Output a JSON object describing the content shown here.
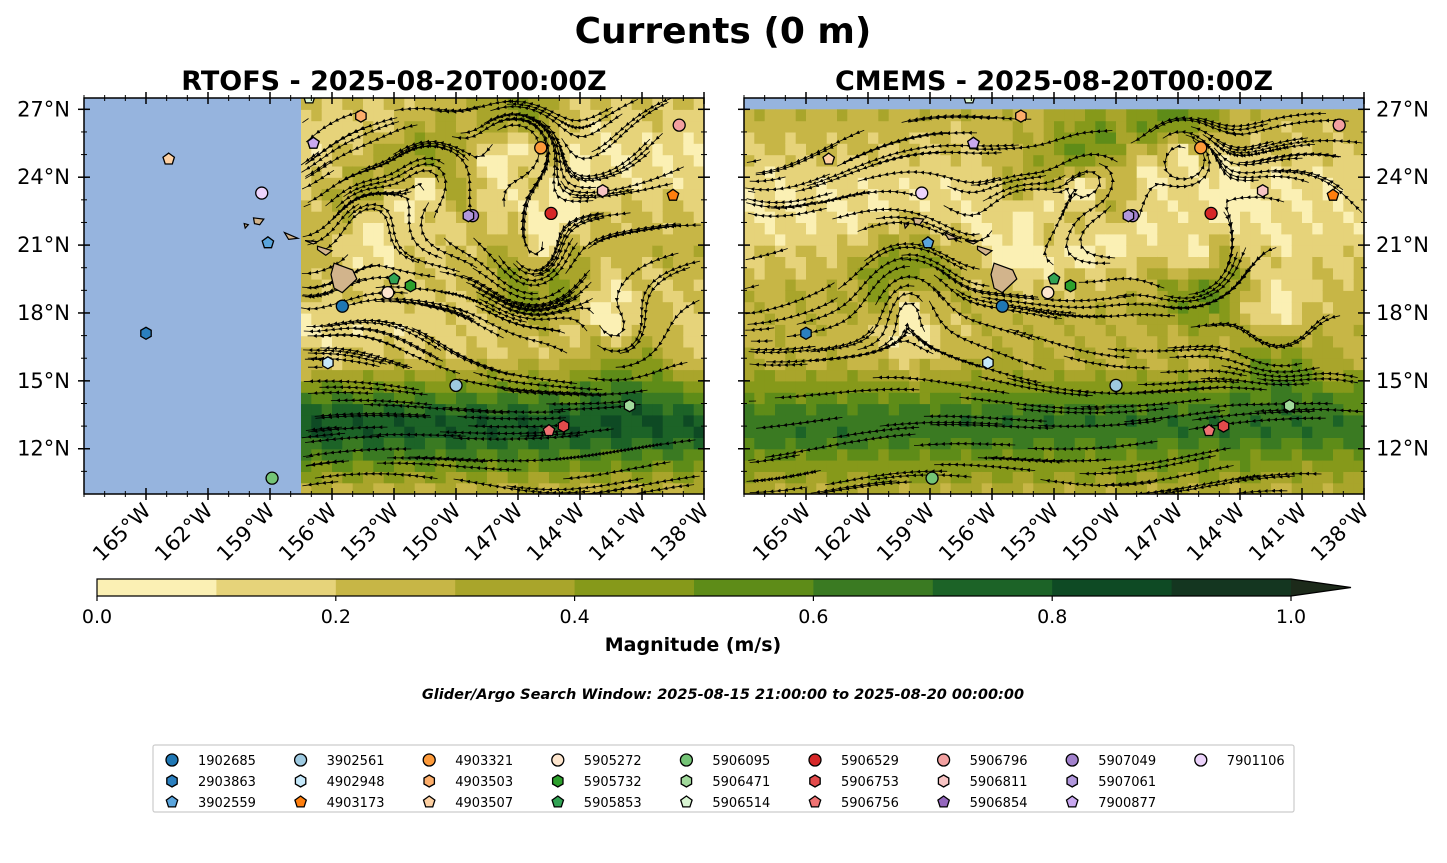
{
  "figure": {
    "suptitle": "Currents (0 m)",
    "search_window": "Glider/Argo Search Window: 2025-08-15 21:00:00 to 2025-08-20 00:00:00"
  },
  "chart_data": [
    {
      "type": "streamplot-map",
      "title": "RTOFS - 2025-08-20T00:00Z",
      "lon_range": [
        -168,
        -138
      ],
      "lat_range": [
        10,
        27.5
      ],
      "lon_ticks": [
        "165°W",
        "162°W",
        "159°W",
        "156°W",
        "153°W",
        "150°W",
        "147°W",
        "144°W",
        "141°W",
        "138°W"
      ],
      "lat_ticks": [
        "12°N",
        "15°N",
        "18°N",
        "21°N",
        "24°N",
        "27°N"
      ],
      "lat_labels_side": "left",
      "model_data_west_edge_lon": -157.5,
      "colors": {
        "ocean_nodata": "#96b4de",
        "land": "#d2b48c"
      }
    },
    {
      "type": "streamplot-map",
      "title": "CMEMS - 2025-08-20T00:00Z",
      "lon_range": [
        -168,
        -138
      ],
      "lat_range": [
        10,
        27.5
      ],
      "lon_ticks": [
        "165°W",
        "162°W",
        "159°W",
        "156°W",
        "153°W",
        "150°W",
        "147°W",
        "144°W",
        "141°W",
        "138°W"
      ],
      "lat_ticks": [
        "12°N",
        "15°N",
        "18°N",
        "21°N",
        "24°N",
        "27°N"
      ],
      "lat_labels_side": "right",
      "model_data_north_edge_lat": 27.0,
      "colors": {
        "ocean_nodata": "#96b4de",
        "land": "#d2b48c"
      }
    }
  ],
  "colorbar": {
    "label": "Magnitude (m/s)",
    "ticks": [
      "0.0",
      "0.2",
      "0.4",
      "0.6",
      "0.8",
      "1.0"
    ],
    "min": 0,
    "max": 1.0,
    "step": 0.1,
    "extend": "max",
    "colors": [
      "#fbf0b4",
      "#e6d37a",
      "#c7b646",
      "#a9a52b",
      "#86991a",
      "#5e8c18",
      "#3a7a22",
      "#1c6327",
      "#0e4a24",
      "#143620",
      "#1c2a1a"
    ]
  },
  "floats": [
    {
      "id": "1902685",
      "lon": -155.5,
      "lat": 18.3,
      "color": "#1f77b4",
      "marker": "circle"
    },
    {
      "id": "2903863",
      "lon": -165.0,
      "lat": 17.1,
      "color": "#2b80c0",
      "marker": "hexagon"
    },
    {
      "id": "3902559",
      "lon": -159.1,
      "lat": 21.1,
      "color": "#5aa5dd",
      "marker": "pentagon"
    },
    {
      "id": "3902561",
      "lon": -150.0,
      "lat": 14.8,
      "color": "#9ecae1",
      "marker": "circle"
    },
    {
      "id": "4902948",
      "lon": -156.2,
      "lat": 15.8,
      "color": "#c6e9fb",
      "marker": "hexagon"
    },
    {
      "id": "4903173",
      "lon": -139.5,
      "lat": 23.2,
      "color": "#ff7f0e",
      "marker": "pentagon"
    },
    {
      "id": "4903321",
      "lon": -145.9,
      "lat": 25.3,
      "color": "#fd9a3a",
      "marker": "circle"
    },
    {
      "id": "4903503",
      "lon": -154.6,
      "lat": 26.7,
      "color": "#fdae6b",
      "marker": "hexagon"
    },
    {
      "id": "4903507",
      "lon": -163.9,
      "lat": 24.8,
      "color": "#fdd0a2",
      "marker": "pentagon"
    },
    {
      "id": "5905272",
      "lon": -153.3,
      "lat": 18.9,
      "color": "#fee6ce",
      "marker": "circle"
    },
    {
      "id": "5905732",
      "lon": -152.2,
      "lat": 19.2,
      "color": "#2ca02c",
      "marker": "hexagon"
    },
    {
      "id": "5905853",
      "lon": -153.0,
      "lat": 19.5,
      "color": "#31a354",
      "marker": "pentagon"
    },
    {
      "id": "5906095",
      "lon": -158.9,
      "lat": 10.7,
      "color": "#74c476",
      "marker": "circle"
    },
    {
      "id": "5906471",
      "lon": -141.6,
      "lat": 13.9,
      "color": "#a1d99b",
      "marker": "hexagon"
    },
    {
      "id": "5906514",
      "lon": -157.1,
      "lat": 27.5,
      "color": "#d9f5d3",
      "marker": "pentagon"
    },
    {
      "id": "5906529",
      "lon": -145.4,
      "lat": 22.4,
      "color": "#d62728",
      "marker": "circle"
    },
    {
      "id": "5906753",
      "lon": -144.8,
      "lat": 13.0,
      "color": "#e34a4b",
      "marker": "hexagon"
    },
    {
      "id": "5906756",
      "lon": -145.5,
      "lat": 12.8,
      "color": "#f07373",
      "marker": "pentagon"
    },
    {
      "id": "5906796",
      "lon": -139.2,
      "lat": 26.3,
      "color": "#f2a0a0",
      "marker": "circle"
    },
    {
      "id": "5906811",
      "lon": -142.9,
      "lat": 23.4,
      "color": "#f8c4c4",
      "marker": "hexagon"
    },
    {
      "id": "5906854",
      "lon": -156.9,
      "lat": 25.5,
      "color": "#9467bd",
      "marker": "pentagon"
    },
    {
      "id": "5907049",
      "lon": -149.2,
      "lat": 22.3,
      "color": "#a281cc",
      "marker": "circle"
    },
    {
      "id": "5907061",
      "lon": -149.4,
      "lat": 22.3,
      "color": "#b197dc",
      "marker": "hexagon"
    },
    {
      "id": "7900877",
      "lon": -156.9,
      "lat": 25.5,
      "color": "#c9a8f0",
      "marker": "pentagon"
    },
    {
      "id": "7901106",
      "lon": -159.4,
      "lat": 23.3,
      "color": "#ecd3fb",
      "marker": "circle"
    }
  ]
}
